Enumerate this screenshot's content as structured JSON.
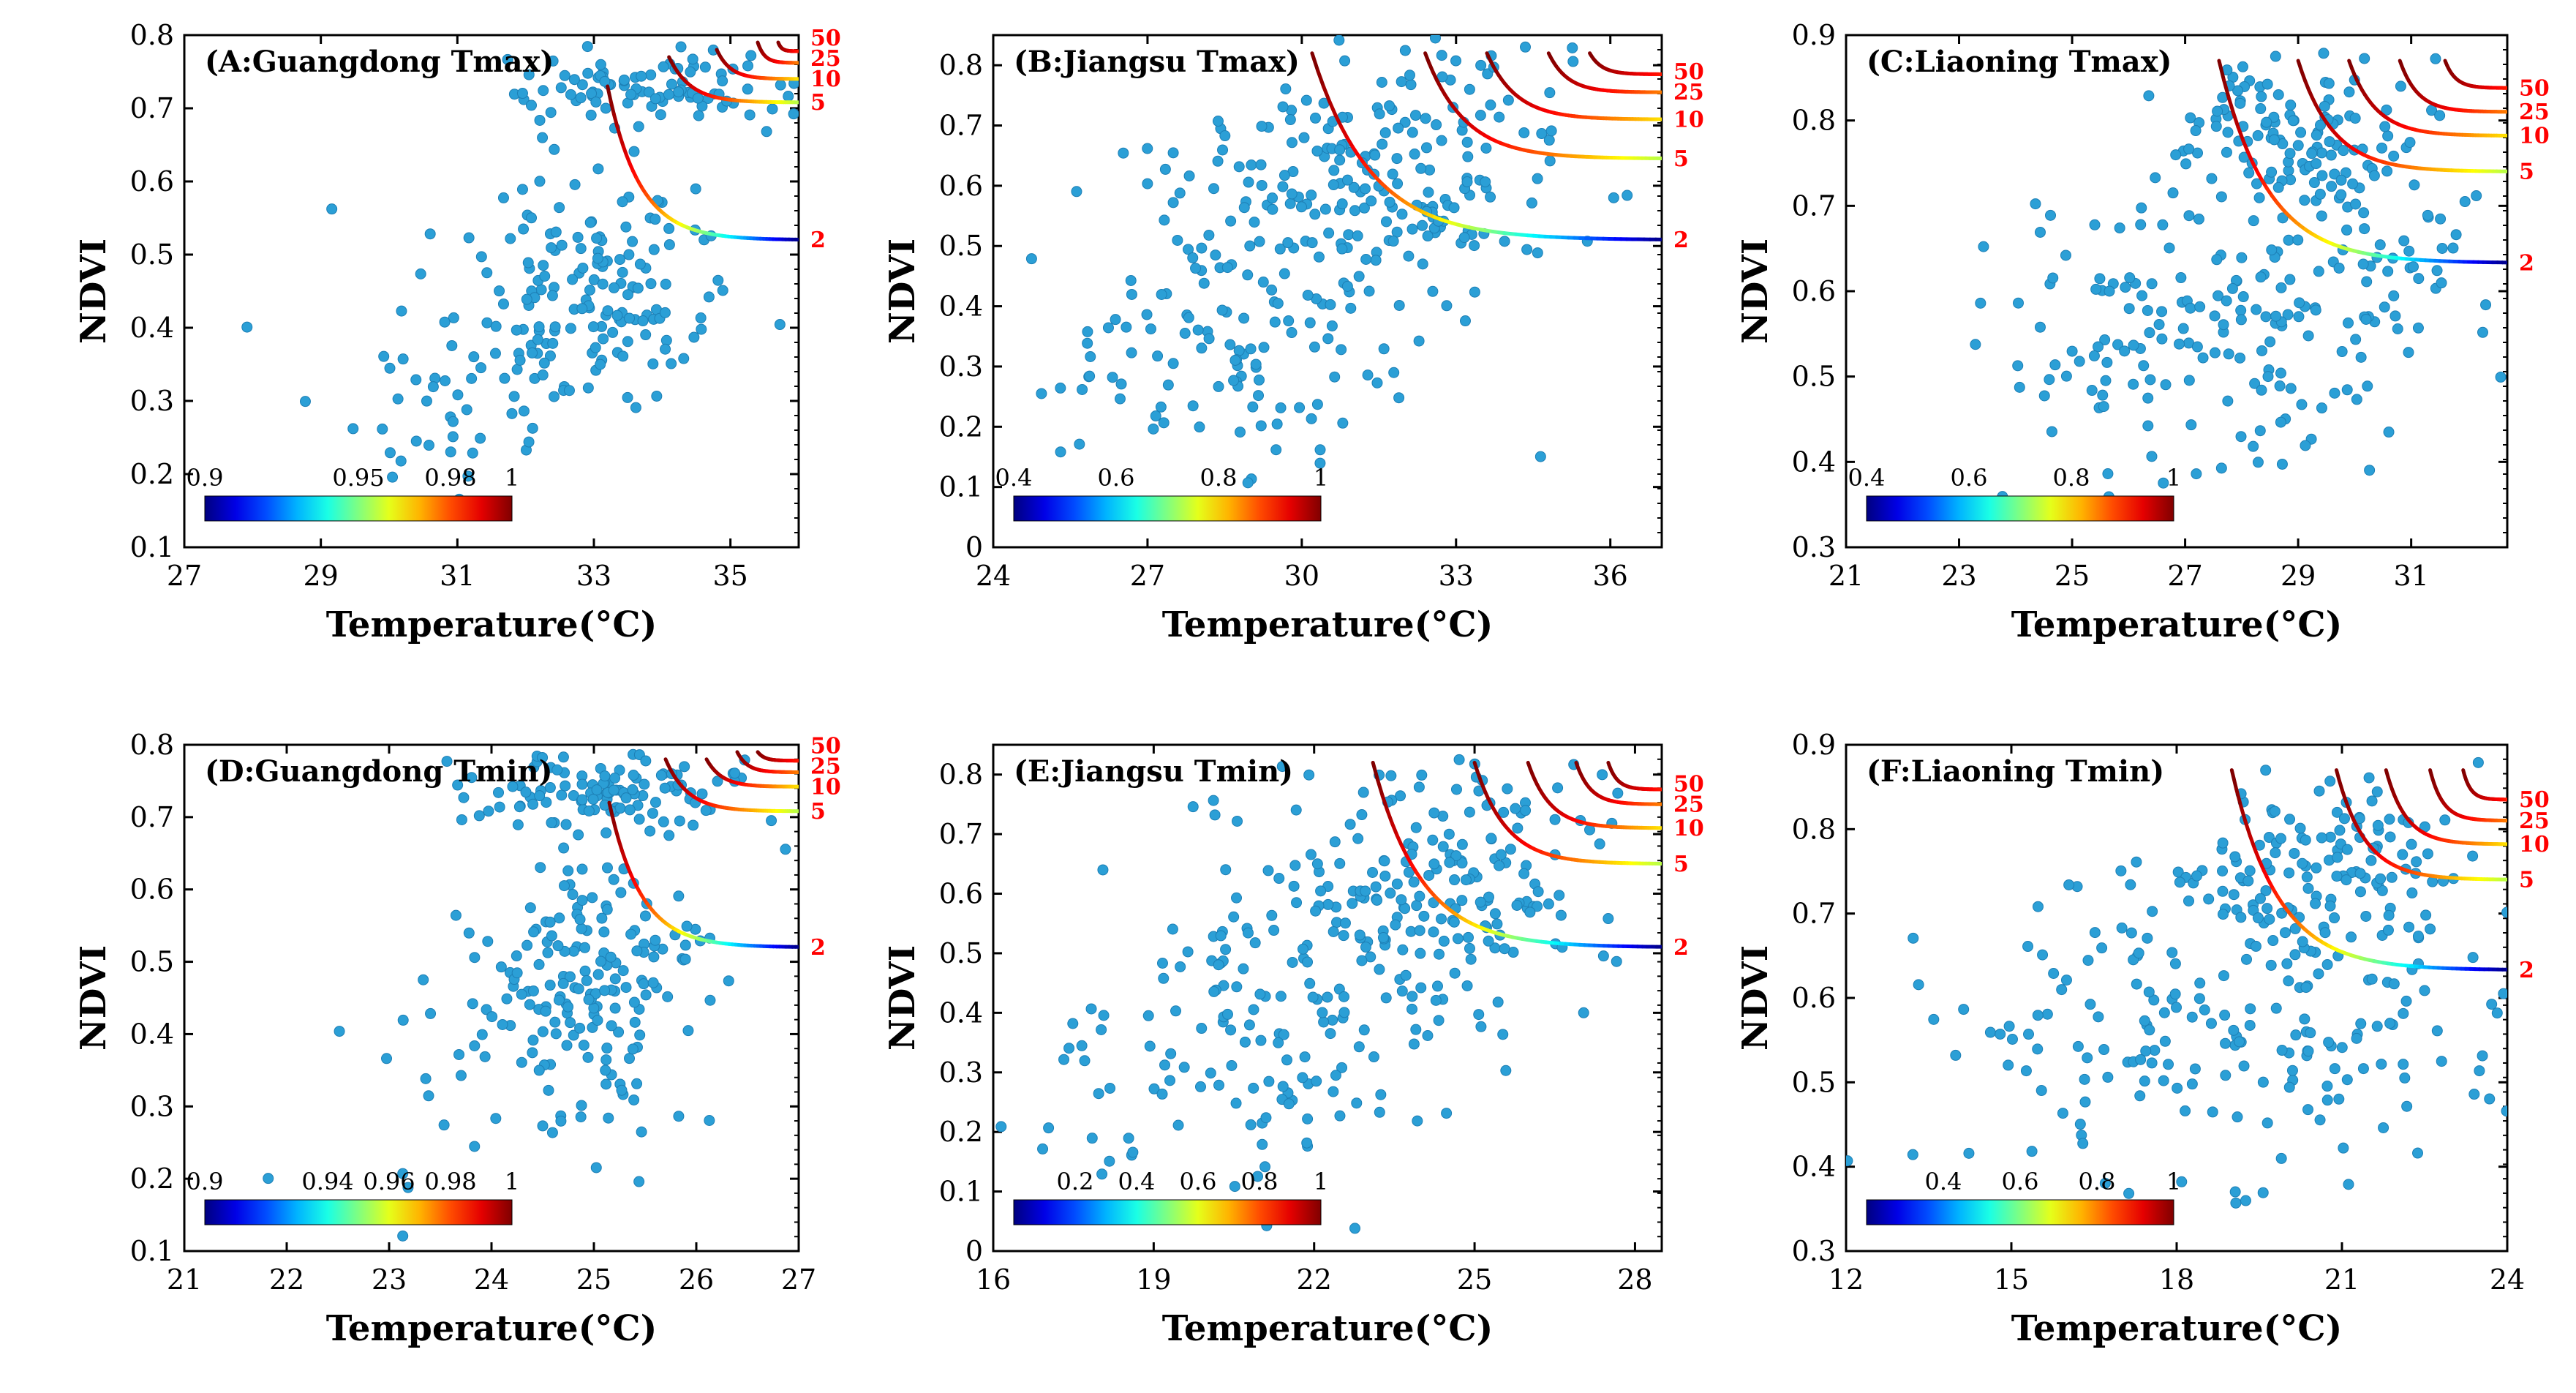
{
  "figure": {
    "colors": {
      "scatter_fill": "#2b9fd6",
      "scatter_edge": "#1d7fb5",
      "return_label": "#ff0000",
      "axis": "#000000"
    },
    "colormap": "jet"
  },
  "chart_data": [
    {
      "type": "scatter",
      "title": "(A:Guangdong Tmax)",
      "xlabel": "Temperature(°C)",
      "ylabel": "NDVI",
      "xlim": [
        27,
        36
      ],
      "ylim": [
        0.1,
        0.8
      ],
      "xticks": [
        27,
        29,
        31,
        33,
        35
      ],
      "yticks": [
        0.1,
        0.2,
        0.3,
        0.4,
        0.5,
        0.6,
        0.7,
        0.8
      ],
      "colorbar": {
        "min": 0.9,
        "max": 1,
        "ticks": [
          0.9,
          0.95,
          0.98,
          1
        ],
        "tick_labels": [
          "0.9",
          "0.95",
          "0.98",
          "1"
        ]
      },
      "curves": [
        {
          "label": "2",
          "x_start": 33.2,
          "y_top": 0.73,
          "y_asym": 0.52
        },
        {
          "label": "5",
          "x_start": 34.1,
          "y_top": 0.77,
          "y_asym": 0.708
        },
        {
          "label": "10",
          "x_start": 34.8,
          "y_top": 0.78,
          "y_asym": 0.74
        },
        {
          "label": "25",
          "x_start": 35.4,
          "y_top": 0.79,
          "y_asym": 0.762
        },
        {
          "label": "50",
          "x_start": 35.7,
          "y_top": 0.79,
          "y_asym": 0.778
        }
      ],
      "scatter": {
        "n": 300,
        "seed": 11,
        "clusters": [
          {
            "x": 33.0,
            "y": 0.47,
            "sx": 1.0,
            "sy": 0.08,
            "w": 0.5
          },
          {
            "x": 33.6,
            "y": 0.73,
            "sx": 1.2,
            "sy": 0.025,
            "w": 0.35
          },
          {
            "x": 31.3,
            "y": 0.33,
            "sx": 1.2,
            "sy": 0.08,
            "w": 0.15
          }
        ]
      }
    },
    {
      "type": "scatter",
      "title": "(B:Jiangsu Tmax)",
      "xlabel": "Temperature(°C)",
      "ylabel": "NDVI",
      "xlim": [
        24,
        37
      ],
      "ylim": [
        0,
        0.85
      ],
      "xticks": [
        24,
        27,
        30,
        33,
        36
      ],
      "yticks": [
        0,
        0.1,
        0.2,
        0.3,
        0.4,
        0.5,
        0.6,
        0.7,
        0.8
      ],
      "colorbar": {
        "min": 0.4,
        "max": 1,
        "ticks": [
          0.4,
          0.6,
          0.8,
          1
        ],
        "tick_labels": [
          "0.4",
          "0.6",
          "0.8",
          "1"
        ]
      },
      "curves": [
        {
          "label": "2",
          "x_start": 30.2,
          "y_top": 0.82,
          "y_asym": 0.51
        },
        {
          "label": "5",
          "x_start": 32.4,
          "y_top": 0.82,
          "y_asym": 0.645
        },
        {
          "label": "10",
          "x_start": 33.6,
          "y_top": 0.82,
          "y_asym": 0.71
        },
        {
          "label": "25",
          "x_start": 34.8,
          "y_top": 0.82,
          "y_asym": 0.755
        },
        {
          "label": "50",
          "x_start": 35.6,
          "y_top": 0.82,
          "y_asym": 0.785
        }
      ],
      "scatter": {
        "n": 340,
        "seed": 23,
        "clusters": [
          {
            "x": 31.5,
            "y": 0.6,
            "sx": 2.0,
            "sy": 0.1,
            "w": 0.55
          },
          {
            "x": 28.5,
            "y": 0.32,
            "sx": 1.8,
            "sy": 0.12,
            "w": 0.35
          },
          {
            "x": 33.0,
            "y": 0.72,
            "sx": 1.5,
            "sy": 0.05,
            "w": 0.1
          }
        ]
      }
    },
    {
      "type": "scatter",
      "title": "(C:Liaoning Tmax)",
      "xlabel": "Temperature(°C)",
      "ylabel": "NDVI",
      "xlim": [
        21,
        32.7
      ],
      "ylim": [
        0.3,
        0.9
      ],
      "xticks": [
        21,
        23,
        25,
        27,
        29,
        31
      ],
      "yticks": [
        0.3,
        0.4,
        0.5,
        0.6,
        0.7,
        0.8,
        0.9
      ],
      "colorbar": {
        "min": 0.4,
        "max": 1,
        "ticks": [
          0.4,
          0.6,
          0.8,
          1
        ],
        "tick_labels": [
          "0.4",
          "0.6",
          "0.8",
          "1"
        ]
      },
      "curves": [
        {
          "label": "2",
          "x_start": 27.6,
          "y_top": 0.87,
          "y_asym": 0.633
        },
        {
          "label": "5",
          "x_start": 29.0,
          "y_top": 0.87,
          "y_asym": 0.74
        },
        {
          "label": "10",
          "x_start": 29.9,
          "y_top": 0.87,
          "y_asym": 0.782
        },
        {
          "label": "25",
          "x_start": 30.8,
          "y_top": 0.87,
          "y_asym": 0.81
        },
        {
          "label": "50",
          "x_start": 31.6,
          "y_top": 0.87,
          "y_asym": 0.838
        }
      ],
      "scatter": {
        "n": 330,
        "seed": 37,
        "clusters": [
          {
            "x": 28.8,
            "y": 0.78,
            "sx": 1.2,
            "sy": 0.04,
            "w": 0.4
          },
          {
            "x": 27.0,
            "y": 0.55,
            "sx": 1.8,
            "sy": 0.08,
            "w": 0.45
          },
          {
            "x": 30.5,
            "y": 0.62,
            "sx": 1.2,
            "sy": 0.07,
            "w": 0.15
          }
        ]
      }
    },
    {
      "type": "scatter",
      "title": "(D:Guangdong Tmin)",
      "xlabel": "Temperature(°C)",
      "ylabel": "NDVI",
      "xlim": [
        21,
        27
      ],
      "ylim": [
        0.1,
        0.8
      ],
      "xticks": [
        21,
        22,
        23,
        24,
        25,
        26,
        27
      ],
      "yticks": [
        0.1,
        0.2,
        0.3,
        0.4,
        0.5,
        0.6,
        0.7,
        0.8
      ],
      "colorbar": {
        "min": 0.9,
        "max": 1,
        "ticks": [
          0.9,
          0.94,
          0.96,
          0.98,
          1
        ],
        "tick_labels": [
          "0.9",
          "0.94",
          "0.96",
          "0.98",
          "1"
        ]
      },
      "curves": [
        {
          "label": "2",
          "x_start": 25.15,
          "y_top": 0.72,
          "y_asym": 0.52
        },
        {
          "label": "5",
          "x_start": 25.7,
          "y_top": 0.78,
          "y_asym": 0.708
        },
        {
          "label": "10",
          "x_start": 26.1,
          "y_top": 0.78,
          "y_asym": 0.742
        },
        {
          "label": "25",
          "x_start": 26.4,
          "y_top": 0.79,
          "y_asym": 0.762
        },
        {
          "label": "50",
          "x_start": 26.6,
          "y_top": 0.79,
          "y_asym": 0.778
        }
      ],
      "scatter": {
        "n": 310,
        "seed": 51,
        "clusters": [
          {
            "x": 25.0,
            "y": 0.47,
            "sx": 0.5,
            "sy": 0.08,
            "w": 0.5
          },
          {
            "x": 25.3,
            "y": 0.73,
            "sx": 0.7,
            "sy": 0.03,
            "w": 0.38
          },
          {
            "x": 24.2,
            "y": 0.35,
            "sx": 0.8,
            "sy": 0.1,
            "w": 0.12
          }
        ]
      }
    },
    {
      "type": "scatter",
      "title": "(E:Jiangsu Tmin)",
      "xlabel": "Temperature(°C)",
      "ylabel": "NDVI",
      "xlim": [
        16,
        28.5
      ],
      "ylim": [
        0,
        0.85
      ],
      "xticks": [
        16,
        19,
        22,
        25,
        28
      ],
      "yticks": [
        0,
        0.1,
        0.2,
        0.3,
        0.4,
        0.5,
        0.6,
        0.7,
        0.8
      ],
      "colorbar": {
        "min": 0,
        "max": 1,
        "ticks": [
          0.2,
          0.4,
          0.6,
          0.8,
          1
        ],
        "tick_labels": [
          "0.2",
          "0.4",
          "0.6",
          "0.8",
          "1"
        ]
      },
      "curves": [
        {
          "label": "2",
          "x_start": 23.1,
          "y_top": 0.82,
          "y_asym": 0.51
        },
        {
          "label": "5",
          "x_start": 25.0,
          "y_top": 0.82,
          "y_asym": 0.65
        },
        {
          "label": "10",
          "x_start": 26.0,
          "y_top": 0.82,
          "y_asym": 0.71
        },
        {
          "label": "25",
          "x_start": 26.9,
          "y_top": 0.82,
          "y_asym": 0.75
        },
        {
          "label": "50",
          "x_start": 27.5,
          "y_top": 0.82,
          "y_asym": 0.775
        }
      ],
      "scatter": {
        "n": 340,
        "seed": 67,
        "clusters": [
          {
            "x": 23.8,
            "y": 0.58,
            "sx": 1.8,
            "sy": 0.1,
            "w": 0.5
          },
          {
            "x": 20.5,
            "y": 0.33,
            "sx": 2.0,
            "sy": 0.12,
            "w": 0.4
          },
          {
            "x": 25.5,
            "y": 0.72,
            "sx": 1.2,
            "sy": 0.05,
            "w": 0.1
          }
        ]
      }
    },
    {
      "type": "scatter",
      "title": "(F:Liaoning Tmin)",
      "xlabel": "Temperature(°C)",
      "ylabel": "NDVI",
      "xlim": [
        12,
        24
      ],
      "ylim": [
        0.3,
        0.9
      ],
      "xticks": [
        12,
        15,
        18,
        21,
        24
      ],
      "yticks": [
        0.3,
        0.4,
        0.5,
        0.6,
        0.7,
        0.8,
        0.9
      ],
      "colorbar": {
        "min": 0.2,
        "max": 1,
        "ticks": [
          0.4,
          0.6,
          0.8,
          1
        ],
        "tick_labels": [
          "0.4",
          "0.6",
          "0.8",
          "1"
        ]
      },
      "curves": [
        {
          "label": "2",
          "x_start": 19.0,
          "y_top": 0.87,
          "y_asym": 0.633
        },
        {
          "label": "5",
          "x_start": 20.9,
          "y_top": 0.87,
          "y_asym": 0.74
        },
        {
          "label": "10",
          "x_start": 21.8,
          "y_top": 0.87,
          "y_asym": 0.782
        },
        {
          "label": "25",
          "x_start": 22.6,
          "y_top": 0.87,
          "y_asym": 0.81
        },
        {
          "label": "50",
          "x_start": 23.2,
          "y_top": 0.87,
          "y_asym": 0.835
        }
      ],
      "scatter": {
        "n": 330,
        "seed": 83,
        "clusters": [
          {
            "x": 20.5,
            "y": 0.76,
            "sx": 1.2,
            "sy": 0.05,
            "w": 0.35
          },
          {
            "x": 18.5,
            "y": 0.55,
            "sx": 2.5,
            "sy": 0.1,
            "w": 0.5
          },
          {
            "x": 21.5,
            "y": 0.6,
            "sx": 1.5,
            "sy": 0.07,
            "w": 0.15
          }
        ]
      }
    }
  ]
}
